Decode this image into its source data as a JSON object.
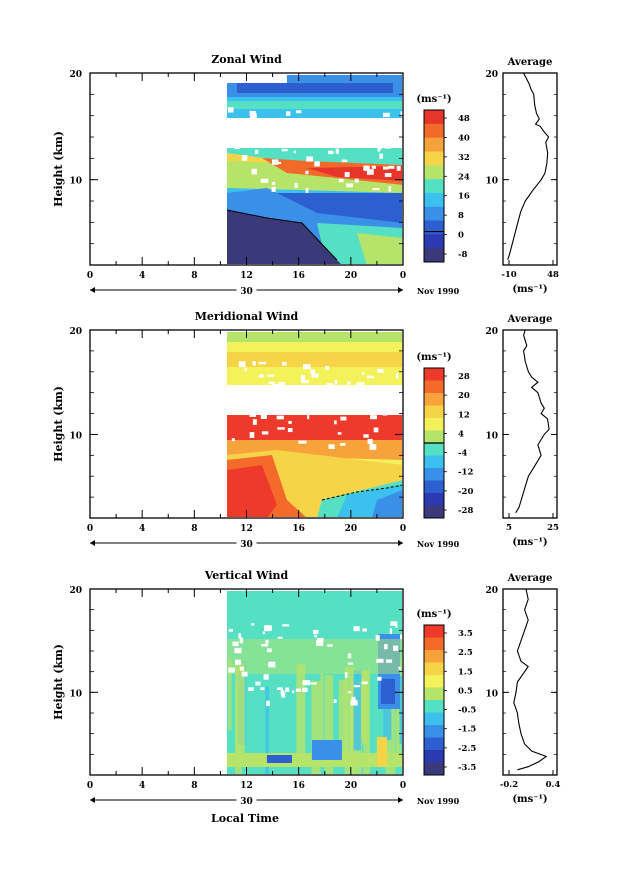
{
  "figure": {
    "date_label": "Nov 1990",
    "xlabel": "Local Time",
    "unit": "(ms⁻¹)"
  },
  "chart_data": [
    {
      "type": "heatmap",
      "id": "zonal",
      "title": "Zonal Wind",
      "ylabel": "Height (km)",
      "xlabel": "",
      "ylim": [
        2,
        20
      ],
      "y_ticks": [
        "20",
        "10"
      ],
      "x_tick_labels": [
        "0",
        "4",
        "8",
        "12",
        "16",
        "20",
        "0"
      ],
      "date_marker": "30",
      "data_start_hour": 10.5,
      "colorbar": {
        "unit": "(ms⁻¹)",
        "labels": [
          "48",
          "40",
          "32",
          "24",
          "16",
          "8",
          "0",
          "-8"
        ],
        "colors": [
          "#e8352a",
          "#f26a2a",
          "#f6a23a",
          "#f5d447",
          "#b6e36a",
          "#56e0c3",
          "#3cc0ee",
          "#3a90e6",
          "#2d5fd0",
          "#2b3ab0",
          "#3a3a7a"
        ],
        "zero_line": true
      },
      "profile": {
        "title": "Average",
        "xlim": [
          -10,
          48
        ],
        "x_tick_labels": [
          "-10",
          "48"
        ],
        "y_ticks": [
          "20",
          "10"
        ],
        "unit": "(ms⁻¹)",
        "points": [
          [
            -5,
            2.5
          ],
          [
            -3,
            3
          ],
          [
            0,
            4
          ],
          [
            3,
            5
          ],
          [
            6,
            6
          ],
          [
            9,
            7
          ],
          [
            14,
            8
          ],
          [
            22,
            9
          ],
          [
            31,
            10
          ],
          [
            35,
            10.6
          ],
          [
            37,
            11.5
          ],
          [
            38,
            12.5
          ],
          [
            36,
            13.5
          ],
          [
            39,
            14
          ],
          [
            34,
            14.5
          ],
          [
            30,
            15
          ],
          [
            25,
            15.2
          ],
          [
            29,
            15.7
          ],
          [
            26,
            16.2
          ],
          [
            24,
            17
          ],
          [
            23,
            18
          ],
          [
            20,
            18.5
          ],
          [
            18,
            19
          ],
          [
            15,
            19.5
          ],
          [
            12,
            20
          ]
        ]
      }
    },
    {
      "type": "heatmap",
      "id": "meridional",
      "title": "Meridional Wind",
      "ylabel": "Height (km)",
      "xlabel": "",
      "ylim": [
        2,
        20
      ],
      "y_ticks": [
        "20",
        "10"
      ],
      "x_tick_labels": [
        "0",
        "4",
        "8",
        "12",
        "16",
        "20",
        "0"
      ],
      "date_marker": "30",
      "data_start_hour": 10.5,
      "colorbar": {
        "unit": "(ms⁻¹)",
        "labels": [
          "28",
          "20",
          "12",
          "4",
          "-4",
          "-12",
          "-20",
          "-28"
        ],
        "colors": [
          "#ee3a2a",
          "#f46a2a",
          "#f7a23a",
          "#f6d447",
          "#f3f25b",
          "#b6e36a",
          "#56e0c3",
          "#3cc0ee",
          "#3a90e6",
          "#2d5fd0",
          "#2b3ab0",
          "#3a3a7a"
        ],
        "zero_line": true
      },
      "profile": {
        "title": "Average",
        "xlim": [
          -2,
          32
        ],
        "x_tick_labels": [
          "5",
          "25"
        ],
        "y_ticks": [
          "20",
          "10"
        ],
        "unit": "(ms⁻¹)",
        "points": [
          [
            6,
            2.5
          ],
          [
            8,
            3
          ],
          [
            10,
            4
          ],
          [
            12,
            5
          ],
          [
            14,
            6
          ],
          [
            18,
            7
          ],
          [
            22,
            8
          ],
          [
            20,
            9
          ],
          [
            24,
            10
          ],
          [
            27,
            10.5
          ],
          [
            26,
            11.5
          ],
          [
            22,
            12
          ],
          [
            24,
            12.5
          ],
          [
            22,
            13
          ],
          [
            20,
            14
          ],
          [
            16,
            14.5
          ],
          [
            20,
            15
          ],
          [
            16,
            15.5
          ],
          [
            14,
            16
          ],
          [
            12,
            17
          ],
          [
            11,
            18
          ],
          [
            13,
            18.5
          ],
          [
            11,
            19.5
          ],
          [
            12,
            20
          ]
        ]
      }
    },
    {
      "type": "heatmap",
      "id": "vertical",
      "title": "Vertical Wind",
      "ylabel": "Height (km)",
      "xlabel": "Local Time",
      "ylim": [
        2,
        20
      ],
      "y_ticks": [
        "20",
        "10"
      ],
      "x_tick_labels": [
        "0",
        "4",
        "8",
        "12",
        "16",
        "20",
        "0"
      ],
      "date_marker": "30",
      "data_start_hour": 10.5,
      "colorbar": {
        "unit": "(ms⁻¹)",
        "labels": [
          "3.5",
          "2.5",
          "1.5",
          "0.5",
          "-0.5",
          "-1.5",
          "-2.5",
          "-3.5"
        ],
        "colors": [
          "#ee3a2a",
          "#f46a2a",
          "#f7a23a",
          "#f6d447",
          "#f3f25b",
          "#b6e36a",
          "#56e0c3",
          "#3cc0ee",
          "#3a90e6",
          "#2d5fd0",
          "#2b3ab0",
          "#3a3a7a"
        ],
        "zero_line": false
      },
      "profile": {
        "title": "Average",
        "xlim": [
          -0.3,
          0.45
        ],
        "x_tick_labels": [
          "-0.2",
          "0.4"
        ],
        "y_ticks": [
          "20",
          "10"
        ],
        "unit": "(ms⁻¹)",
        "points": [
          [
            -0.1,
            2.5
          ],
          [
            0.05,
            2.8
          ],
          [
            0.2,
            3.3
          ],
          [
            0.3,
            3.8
          ],
          [
            0.1,
            4.3
          ],
          [
            0.0,
            5
          ],
          [
            -0.05,
            6
          ],
          [
            -0.08,
            7
          ],
          [
            -0.1,
            8
          ],
          [
            -0.15,
            9
          ],
          [
            -0.12,
            10
          ],
          [
            -0.1,
            11
          ],
          [
            0.0,
            12
          ],
          [
            0.05,
            12.5
          ],
          [
            -0.05,
            13
          ],
          [
            -0.1,
            14
          ],
          [
            -0.05,
            15
          ],
          [
            0.0,
            16
          ],
          [
            0.05,
            17
          ],
          [
            0.0,
            18
          ],
          [
            0.05,
            19
          ],
          [
            0.02,
            20
          ]
        ]
      }
    }
  ]
}
